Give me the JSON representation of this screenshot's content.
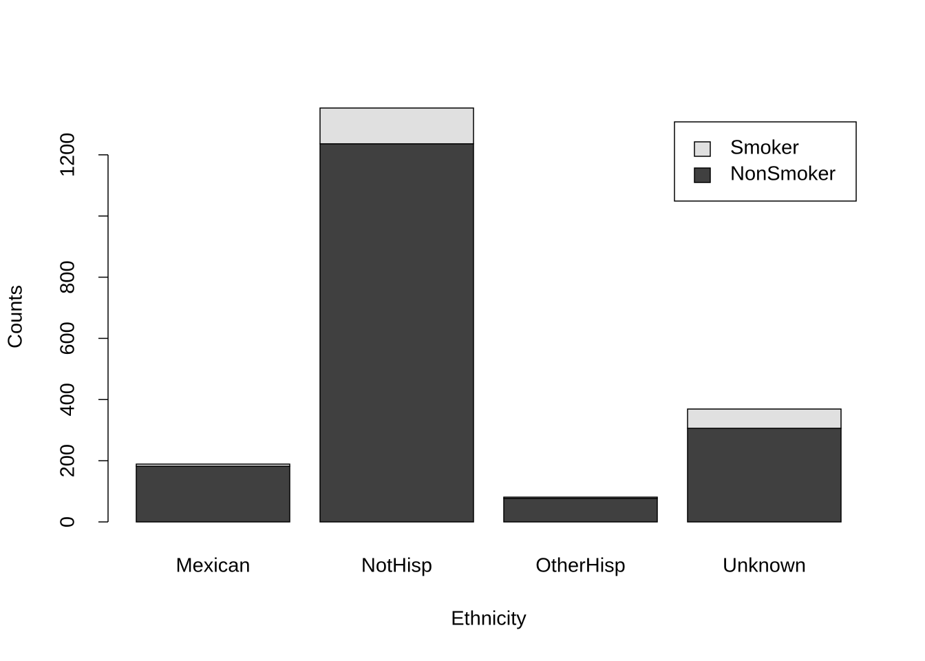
{
  "chart_data": {
    "type": "stacked-bar",
    "x_label": "Ethnicity",
    "y_label": "Counts",
    "categories": [
      "Mexican",
      "NotHisp",
      "OtherHisp",
      "Unknown"
    ],
    "series": [
      {
        "name": "NonSmoker",
        "color": "#404040",
        "values": [
          182,
          1236,
          77,
          306
        ]
      },
      {
        "name": "Smoker",
        "color": "#e0e0e0",
        "values": [
          7,
          117,
          4,
          63
        ]
      }
    ],
    "ylim": [
      0,
      1400
    ],
    "yticks": [
      0,
      200,
      400,
      600,
      800,
      {
        "value": 1000,
        "label": null
      },
      1200
    ],
    "legend": "top-right"
  }
}
